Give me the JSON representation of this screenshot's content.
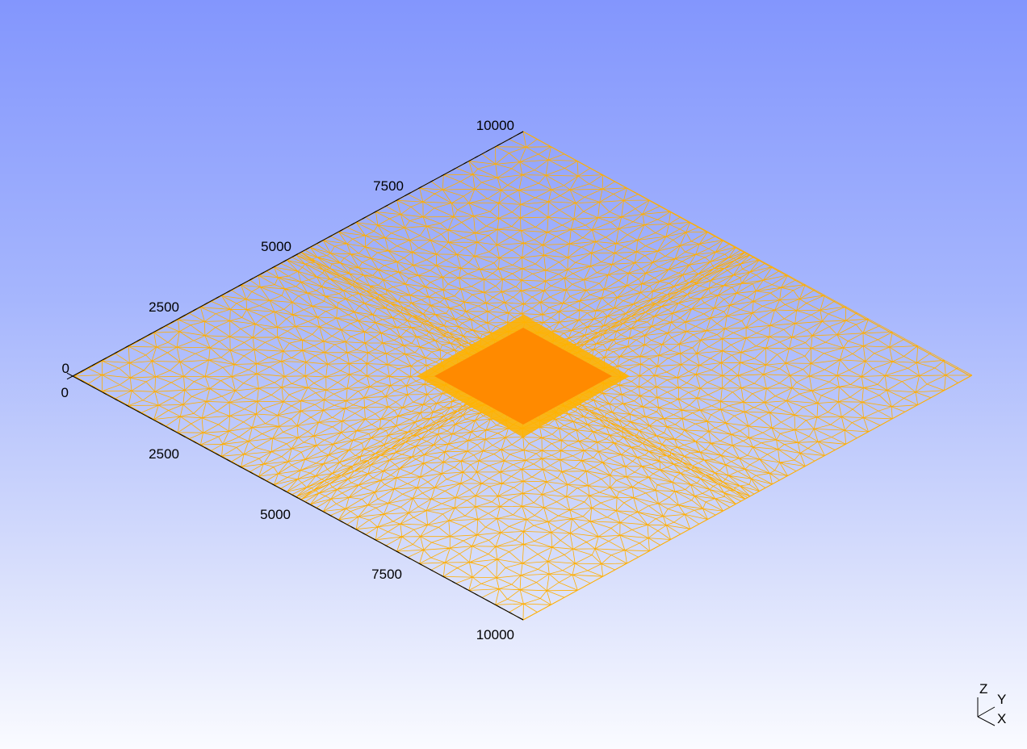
{
  "colors": {
    "mesh_line": "#ffae00",
    "refined_zone": "#ffb300",
    "block": "#ff8a00",
    "axis": "#000000"
  },
  "axes": {
    "upper": {
      "ticks": [
        "0",
        "2500",
        "5000",
        "7500",
        "10000"
      ],
      "range": [
        0,
        10000
      ]
    },
    "lower": {
      "ticks": [
        "0",
        "2500",
        "5000",
        "7500",
        "10000"
      ],
      "range": [
        0,
        10000
      ]
    }
  },
  "triad": {
    "z": "Z",
    "y": "Y",
    "x": "X"
  }
}
